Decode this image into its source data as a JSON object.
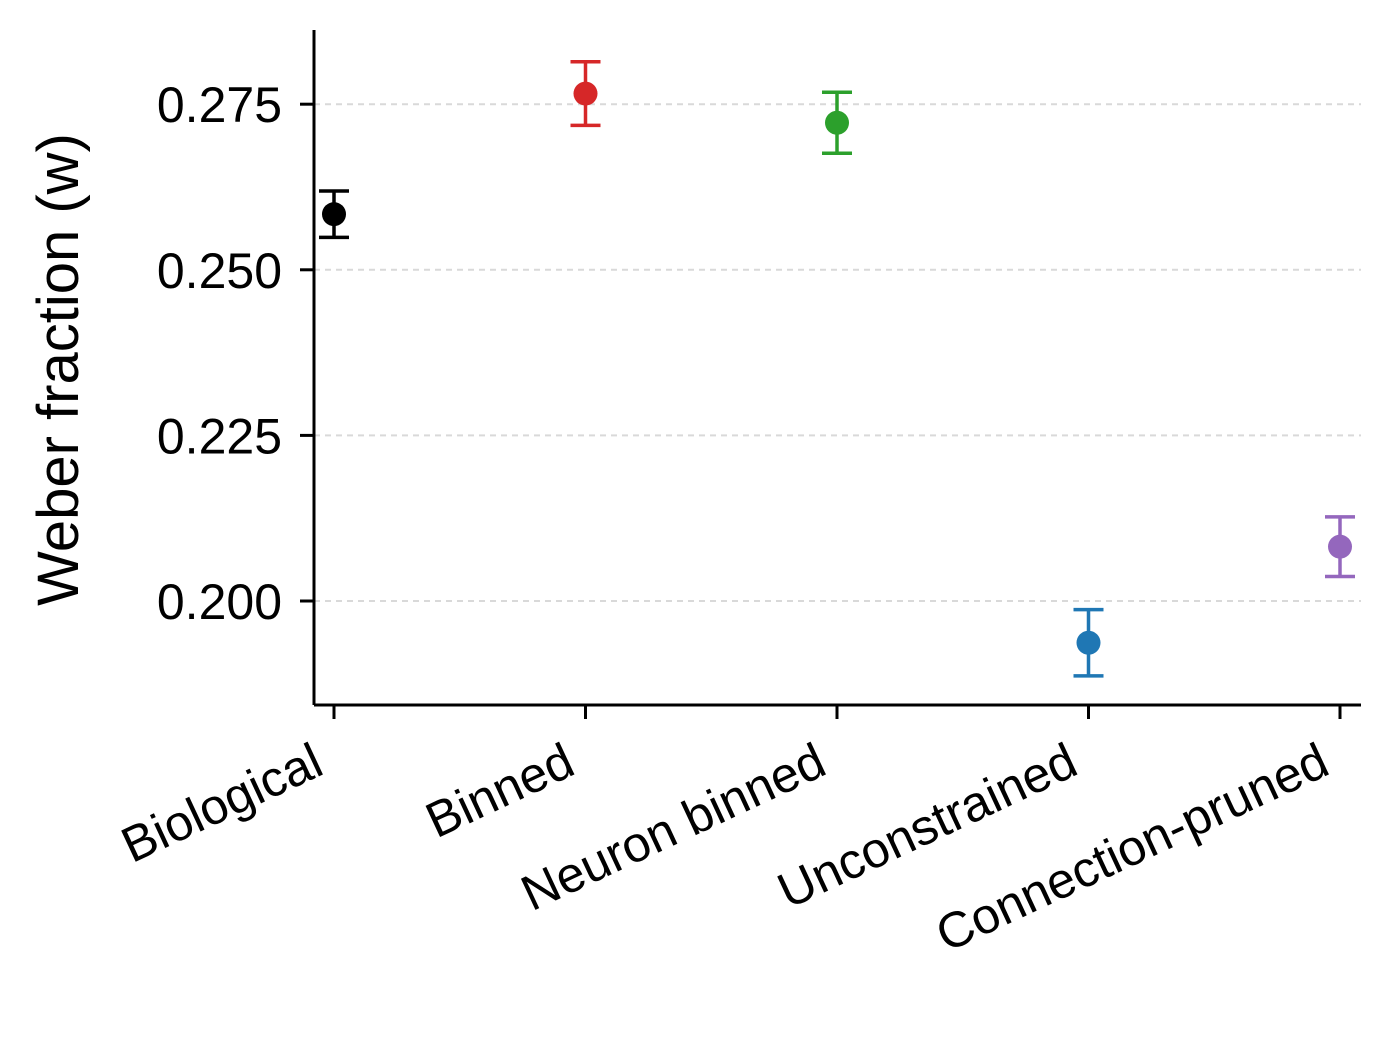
{
  "chart_data": {
    "type": "scatter",
    "title": "",
    "xlabel": "",
    "ylabel": "Weber fraction (w)",
    "ylim": [
      0.1843,
      0.2862
    ],
    "yticks": [
      "0.200",
      "0.225",
      "0.250",
      "0.275"
    ],
    "ytick_values": [
      0.2,
      0.225,
      0.25,
      0.275
    ],
    "grid": "y-dashed",
    "categories": [
      "Biological",
      "Binned",
      "Neuron binned",
      "Unconstrained",
      "Connection-pruned"
    ],
    "values": [
      0.2584,
      0.2766,
      0.2722,
      0.1937,
      0.2082
    ],
    "errors": [
      0.0035,
      0.0048,
      0.0046,
      0.005,
      0.0045
    ],
    "colors": [
      "#000000",
      "#d62728",
      "#2ca02c",
      "#1f77b4",
      "#9467bd"
    ]
  }
}
